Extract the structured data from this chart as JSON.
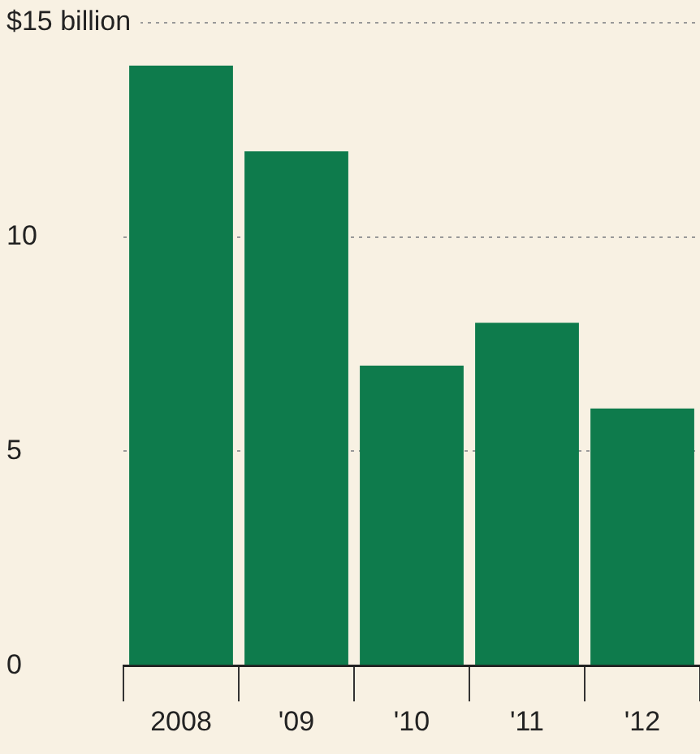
{
  "chart_data": {
    "type": "bar",
    "categories": [
      "2008",
      "'09",
      "'10",
      "'11",
      "'12"
    ],
    "values": [
      14,
      12,
      7,
      8,
      6
    ],
    "color": "#0e7b4c",
    "ylim": [
      0,
      15
    ],
    "yticks": [
      0,
      5,
      10,
      {
        "value": 15,
        "label": "$15 billion"
      }
    ],
    "grid": "y",
    "legend": false
  }
}
